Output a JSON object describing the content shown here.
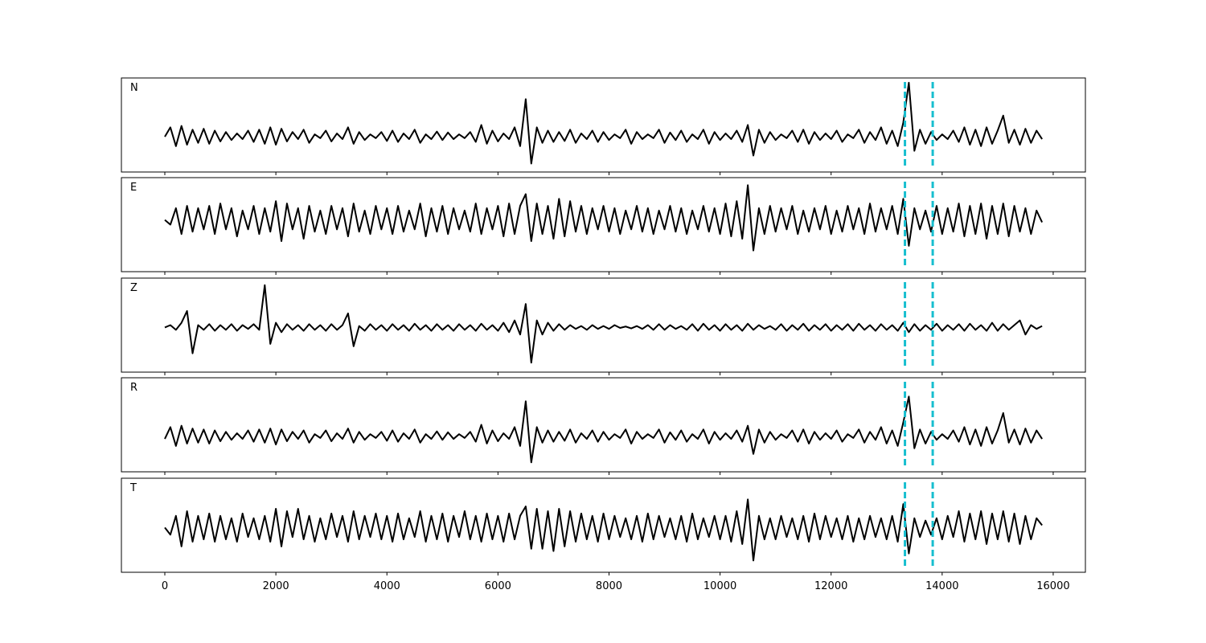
{
  "chart_data": {
    "type": "line",
    "x": [
      0,
      100,
      200,
      300,
      400,
      500,
      600,
      700,
      800,
      900,
      1000,
      1100,
      1200,
      1300,
      1400,
      1500,
      1600,
      1700,
      1800,
      1900,
      2000,
      2100,
      2200,
      2300,
      2400,
      2500,
      2600,
      2700,
      2800,
      2900,
      3000,
      3100,
      3200,
      3300,
      3400,
      3500,
      3600,
      3700,
      3800,
      3900,
      4000,
      4100,
      4200,
      4300,
      4400,
      4500,
      4600,
      4700,
      4800,
      4900,
      5000,
      5100,
      5200,
      5300,
      5400,
      5500,
      5600,
      5700,
      5800,
      5900,
      6000,
      6100,
      6200,
      6300,
      6400,
      6500,
      6600,
      6700,
      6800,
      6900,
      7000,
      7100,
      7200,
      7300,
      7400,
      7500,
      7600,
      7700,
      7800,
      7900,
      8000,
      8100,
      8200,
      8300,
      8400,
      8500,
      8600,
      8700,
      8800,
      8900,
      9000,
      9100,
      9200,
      9300,
      9400,
      9500,
      9600,
      9700,
      9800,
      9900,
      10000,
      10100,
      10200,
      10300,
      10400,
      10500,
      10600,
      10700,
      10800,
      10900,
      11000,
      11100,
      11200,
      11300,
      11400,
      11500,
      11600,
      11700,
      11800,
      11900,
      12000,
      12100,
      12200,
      12300,
      12400,
      12500,
      12600,
      12700,
      12800,
      12900,
      13000,
      13100,
      13200,
      13300,
      13400,
      13500,
      13600,
      13700,
      13800,
      13900,
      14000,
      14100,
      14200,
      14300,
      14400,
      14500,
      14600,
      14700,
      14800,
      14900,
      15000,
      15100,
      15200,
      15300,
      15400,
      15500,
      15600,
      15700,
      15800
    ],
    "series": [
      {
        "name": "N",
        "color": "#000000",
        "values": [
          -0.25,
          -0.05,
          -0.45,
          -0.02,
          -0.42,
          -0.1,
          -0.38,
          -0.08,
          -0.4,
          -0.12,
          -0.35,
          -0.15,
          -0.32,
          -0.18,
          -0.3,
          -0.12,
          -0.36,
          -0.1,
          -0.4,
          -0.05,
          -0.42,
          -0.08,
          -0.35,
          -0.15,
          -0.3,
          -0.1,
          -0.38,
          -0.2,
          -0.28,
          -0.12,
          -0.35,
          -0.18,
          -0.3,
          -0.05,
          -0.4,
          -0.15,
          -0.32,
          -0.2,
          -0.28,
          -0.15,
          -0.34,
          -0.12,
          -0.36,
          -0.18,
          -0.3,
          -0.1,
          -0.38,
          -0.2,
          -0.3,
          -0.14,
          -0.32,
          -0.16,
          -0.3,
          -0.2,
          -0.28,
          -0.15,
          -0.36,
          0.0,
          -0.4,
          -0.12,
          -0.35,
          -0.18,
          -0.3,
          -0.05,
          -0.45,
          0.55,
          -0.82,
          -0.05,
          -0.38,
          -0.12,
          -0.36,
          -0.15,
          -0.34,
          -0.1,
          -0.38,
          -0.18,
          -0.3,
          -0.12,
          -0.36,
          -0.15,
          -0.32,
          -0.2,
          -0.28,
          -0.1,
          -0.4,
          -0.15,
          -0.3,
          -0.2,
          -0.28,
          -0.1,
          -0.38,
          -0.16,
          -0.32,
          -0.12,
          -0.36,
          -0.2,
          -0.3,
          -0.1,
          -0.4,
          -0.15,
          -0.32,
          -0.18,
          -0.3,
          -0.12,
          -0.36,
          0.0,
          -0.65,
          -0.1,
          -0.38,
          -0.15,
          -0.32,
          -0.2,
          -0.28,
          -0.12,
          -0.36,
          -0.1,
          -0.4,
          -0.15,
          -0.32,
          -0.18,
          -0.3,
          -0.12,
          -0.36,
          -0.2,
          -0.28,
          -0.1,
          -0.38,
          -0.15,
          -0.32,
          -0.05,
          -0.4,
          -0.12,
          -0.45,
          0.05,
          0.9,
          -0.55,
          -0.1,
          -0.4,
          -0.15,
          -0.32,
          -0.2,
          -0.3,
          -0.12,
          -0.36,
          -0.05,
          -0.42,
          -0.1,
          -0.45,
          -0.05,
          -0.4,
          -0.12,
          0.2,
          -0.38,
          -0.1,
          -0.42,
          -0.08,
          -0.38,
          -0.12,
          -0.3
        ]
      },
      {
        "name": "E",
        "color": "#000000",
        "values": [
          0.1,
          0.0,
          0.35,
          -0.2,
          0.4,
          -0.15,
          0.35,
          -0.1,
          0.4,
          -0.2,
          0.45,
          -0.1,
          0.35,
          -0.25,
          0.3,
          -0.1,
          0.4,
          -0.2,
          0.35,
          -0.15,
          0.5,
          -0.35,
          0.45,
          -0.1,
          0.35,
          -0.3,
          0.4,
          -0.15,
          0.3,
          -0.2,
          0.4,
          -0.1,
          0.35,
          -0.25,
          0.45,
          -0.15,
          0.3,
          -0.2,
          0.4,
          -0.1,
          0.35,
          -0.2,
          0.4,
          -0.15,
          0.3,
          -0.1,
          0.45,
          -0.25,
          0.35,
          -0.15,
          0.4,
          -0.2,
          0.35,
          -0.1,
          0.3,
          -0.15,
          0.45,
          -0.2,
          0.35,
          -0.1,
          0.4,
          -0.25,
          0.45,
          -0.2,
          0.4,
          0.65,
          -0.35,
          0.45,
          -0.2,
          0.4,
          -0.3,
          0.55,
          -0.25,
          0.5,
          -0.15,
          0.4,
          -0.2,
          0.35,
          -0.1,
          0.4,
          -0.15,
          0.35,
          -0.2,
          0.3,
          -0.1,
          0.4,
          -0.15,
          0.35,
          -0.2,
          0.3,
          -0.1,
          0.4,
          -0.15,
          0.35,
          -0.2,
          0.3,
          -0.1,
          0.4,
          -0.15,
          0.35,
          -0.2,
          0.45,
          -0.25,
          0.5,
          -0.3,
          0.84,
          -0.55,
          0.35,
          -0.2,
          0.4,
          -0.15,
          0.35,
          -0.1,
          0.4,
          -0.2,
          0.3,
          -0.15,
          0.35,
          -0.1,
          0.4,
          -0.2,
          0.3,
          -0.15,
          0.4,
          -0.1,
          0.35,
          -0.2,
          0.45,
          -0.15,
          0.35,
          -0.1,
          0.4,
          -0.2,
          0.55,
          -0.45,
          0.35,
          -0.1,
          0.3,
          -0.15,
          0.4,
          -0.2,
          0.35,
          -0.15,
          0.45,
          -0.25,
          0.4,
          -0.2,
          0.45,
          -0.3,
          0.4,
          -0.2,
          0.45,
          -0.25,
          0.4,
          -0.15,
          0.35,
          -0.2,
          0.3,
          0.05
        ]
      },
      {
        "name": "Z",
        "color": "#000000",
        "values": [
          -0.05,
          0.0,
          -0.1,
          0.05,
          0.3,
          -0.6,
          0.0,
          -0.1,
          0.02,
          -0.12,
          0.0,
          -0.1,
          0.02,
          -0.12,
          0.0,
          -0.08,
          0.02,
          -0.1,
          0.85,
          -0.4,
          0.05,
          -0.15,
          0.02,
          -0.1,
          0.0,
          -0.12,
          0.02,
          -0.1,
          0.0,
          -0.12,
          0.02,
          -0.1,
          0.0,
          0.25,
          -0.45,
          -0.02,
          -0.12,
          0.02,
          -0.1,
          0.0,
          -0.12,
          0.02,
          -0.1,
          0.0,
          -0.12,
          0.03,
          -0.1,
          0.0,
          -0.12,
          0.02,
          -0.1,
          0.0,
          -0.12,
          0.02,
          -0.1,
          0.0,
          -0.12,
          0.03,
          -0.1,
          0.0,
          -0.12,
          0.05,
          -0.15,
          0.1,
          -0.2,
          0.45,
          -0.8,
          0.1,
          -0.2,
          0.05,
          -0.12,
          0.02,
          -0.1,
          0.0,
          -0.08,
          -0.02,
          -0.1,
          0.0,
          -0.08,
          -0.02,
          -0.08,
          0.0,
          -0.06,
          -0.03,
          -0.07,
          -0.02,
          -0.08,
          0.0,
          -0.1,
          0.02,
          -0.1,
          0.0,
          -0.08,
          -0.02,
          -0.1,
          0.02,
          -0.12,
          0.03,
          -0.1,
          0.0,
          -0.12,
          0.02,
          -0.1,
          0.0,
          -0.12,
          0.03,
          -0.1,
          0.0,
          -0.08,
          -0.02,
          -0.1,
          0.02,
          -0.12,
          0.0,
          -0.1,
          0.03,
          -0.12,
          0.0,
          -0.1,
          0.02,
          -0.12,
          0.0,
          -0.1,
          0.02,
          -0.12,
          0.03,
          -0.1,
          0.0,
          -0.12,
          0.02,
          -0.1,
          0.0,
          -0.12,
          0.05,
          -0.15,
          0.02,
          -0.12,
          0.0,
          -0.1,
          0.03,
          -0.12,
          0.0,
          -0.1,
          0.02,
          -0.12,
          0.03,
          -0.1,
          0.0,
          -0.12,
          0.05,
          -0.12,
          0.02,
          -0.1,
          0.0,
          0.1,
          -0.2,
          0.0,
          -0.08,
          -0.02
        ]
      },
      {
        "name": "R",
        "color": "#000000",
        "values": [
          -0.3,
          -0.05,
          -0.45,
          -0.02,
          -0.4,
          -0.08,
          -0.38,
          -0.1,
          -0.4,
          -0.12,
          -0.35,
          -0.15,
          -0.32,
          -0.18,
          -0.3,
          -0.12,
          -0.36,
          -0.1,
          -0.38,
          -0.08,
          -0.42,
          -0.1,
          -0.35,
          -0.15,
          -0.3,
          -0.12,
          -0.38,
          -0.2,
          -0.28,
          -0.12,
          -0.35,
          -0.18,
          -0.3,
          -0.08,
          -0.38,
          -0.15,
          -0.32,
          -0.2,
          -0.28,
          -0.15,
          -0.34,
          -0.12,
          -0.36,
          -0.18,
          -0.3,
          -0.1,
          -0.38,
          -0.2,
          -0.3,
          -0.14,
          -0.32,
          -0.16,
          -0.3,
          -0.2,
          -0.28,
          -0.15,
          -0.36,
          0.0,
          -0.4,
          -0.12,
          -0.35,
          -0.18,
          -0.3,
          -0.05,
          -0.45,
          0.5,
          -0.8,
          -0.05,
          -0.38,
          -0.12,
          -0.36,
          -0.15,
          -0.34,
          -0.1,
          -0.38,
          -0.18,
          -0.3,
          -0.12,
          -0.36,
          -0.15,
          -0.32,
          -0.2,
          -0.28,
          -0.1,
          -0.4,
          -0.15,
          -0.3,
          -0.2,
          -0.28,
          -0.1,
          -0.38,
          -0.16,
          -0.32,
          -0.12,
          -0.36,
          -0.2,
          -0.3,
          -0.1,
          -0.4,
          -0.15,
          -0.32,
          -0.18,
          -0.3,
          -0.12,
          -0.36,
          -0.02,
          -0.62,
          -0.1,
          -0.38,
          -0.15,
          -0.32,
          -0.2,
          -0.28,
          -0.12,
          -0.36,
          -0.1,
          -0.4,
          -0.15,
          -0.32,
          -0.18,
          -0.3,
          -0.12,
          -0.36,
          -0.2,
          -0.28,
          -0.1,
          -0.38,
          -0.15,
          -0.32,
          -0.05,
          -0.4,
          -0.12,
          -0.45,
          0.05,
          0.6,
          -0.5,
          -0.1,
          -0.4,
          -0.15,
          -0.32,
          -0.2,
          -0.3,
          -0.12,
          -0.36,
          -0.05,
          -0.42,
          -0.1,
          -0.45,
          -0.05,
          -0.4,
          -0.12,
          0.25,
          -0.38,
          -0.1,
          -0.42,
          -0.08,
          -0.38,
          -0.12,
          -0.3
        ]
      },
      {
        "name": "T",
        "color": "#000000",
        "values": [
          -0.05,
          -0.2,
          0.2,
          -0.45,
          0.3,
          -0.35,
          0.2,
          -0.3,
          0.25,
          -0.35,
          0.2,
          -0.3,
          0.15,
          -0.35,
          0.25,
          -0.25,
          0.15,
          -0.3,
          0.2,
          -0.35,
          0.35,
          -0.45,
          0.3,
          -0.25,
          0.35,
          -0.3,
          0.2,
          -0.35,
          0.15,
          -0.3,
          0.25,
          -0.25,
          0.2,
          -0.35,
          0.3,
          -0.3,
          0.2,
          -0.25,
          0.25,
          -0.3,
          0.2,
          -0.35,
          0.25,
          -0.3,
          0.15,
          -0.25,
          0.3,
          -0.35,
          0.2,
          -0.3,
          0.25,
          -0.35,
          0.2,
          -0.25,
          0.3,
          -0.3,
          0.2,
          -0.35,
          0.25,
          -0.3,
          0.2,
          -0.35,
          0.25,
          -0.3,
          0.2,
          0.4,
          -0.5,
          0.35,
          -0.5,
          0.3,
          -0.55,
          0.35,
          -0.45,
          0.3,
          -0.35,
          0.25,
          -0.3,
          0.2,
          -0.35,
          0.25,
          -0.3,
          0.2,
          -0.25,
          0.15,
          -0.3,
          0.2,
          -0.35,
          0.25,
          -0.3,
          0.2,
          -0.25,
          0.15,
          -0.3,
          0.2,
          -0.35,
          0.25,
          -0.3,
          0.15,
          -0.25,
          0.2,
          -0.3,
          0.2,
          -0.35,
          0.3,
          -0.4,
          0.55,
          -0.75,
          0.2,
          -0.3,
          0.15,
          -0.3,
          0.2,
          -0.25,
          0.15,
          -0.3,
          0.2,
          -0.35,
          0.25,
          -0.3,
          0.2,
          -0.25,
          0.15,
          -0.3,
          0.2,
          -0.35,
          0.15,
          -0.3,
          0.2,
          -0.25,
          0.15,
          -0.3,
          0.2,
          -0.35,
          0.45,
          -0.6,
          0.15,
          -0.25,
          0.1,
          -0.2,
          0.15,
          -0.3,
          0.2,
          -0.25,
          0.3,
          -0.35,
          0.25,
          -0.3,
          0.3,
          -0.4,
          0.25,
          -0.3,
          0.3,
          -0.35,
          0.25,
          -0.4,
          0.2,
          -0.3,
          0.15,
          0.0
        ]
      }
    ],
    "vlines": [
      {
        "x": 13330,
        "color": "#17becf"
      },
      {
        "x": 13830,
        "color": "#17becf"
      }
    ],
    "xlim": [
      -782,
      16580
    ],
    "xticks": [
      0,
      2000,
      4000,
      6000,
      8000,
      10000,
      12000,
      14000,
      16000
    ],
    "ylim": [
      -1,
      1
    ]
  }
}
